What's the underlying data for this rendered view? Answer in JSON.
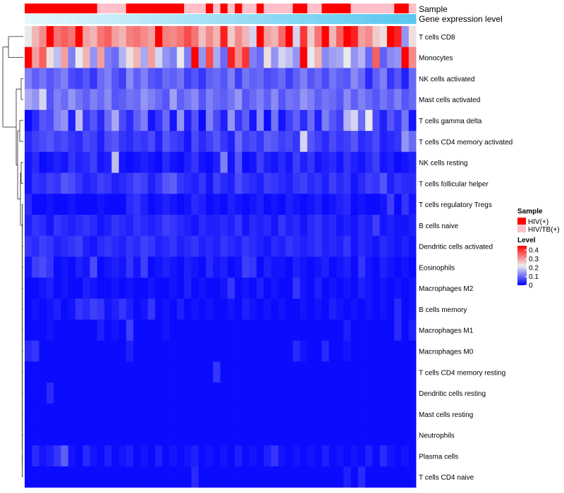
{
  "chart_data": {
    "type": "heatmap",
    "title": "",
    "annotations": {
      "sample_label": "Sample",
      "gene_label": "Gene expression level"
    },
    "legend": {
      "sample_title": "Sample",
      "sample_entries": [
        {
          "name": "HIV(+)",
          "color": "#ff0000"
        },
        {
          "name": "HIV/TB(+)",
          "color": "#ffc0cb"
        }
      ],
      "level_title": "Level",
      "level_ticks": [
        "0.4",
        "0.3",
        "0.2",
        "0.1",
        "0"
      ],
      "placement": "right"
    },
    "color_scale": {
      "min": 0,
      "max": 0.45,
      "low": "#0000ff",
      "mid": "#eeeeee",
      "high": "#ff0000"
    },
    "column_sample_groups": [
      0,
      0,
      0,
      0,
      0,
      0,
      0,
      0,
      0,
      0,
      1,
      1,
      1,
      1,
      0,
      0,
      0,
      0,
      0,
      0,
      0,
      0,
      1,
      1,
      1,
      0,
      1,
      0,
      1,
      0,
      1,
      1,
      0,
      1,
      1,
      1,
      1,
      0,
      0,
      1,
      1,
      0,
      0,
      0,
      0,
      1,
      1,
      1,
      1,
      1,
      1,
      0,
      0,
      1
    ],
    "rows": [
      "T cells CD8",
      "Monocytes",
      "NK cells activated",
      "Mast cells activated",
      "T cells gamma delta",
      "T cells CD4 memory activated",
      "NK cells resting",
      "T cells follicular helper",
      "T cells regulatory  Tregs",
      "B cells naive",
      "Dendritic cells activated",
      "Eosinophils",
      "Macrophages M2",
      "B cells memory",
      "Macrophages M1",
      "Macrophages M0",
      "T cells CD4 memory resting",
      "Dendritic cells resting",
      "Mast cells resting",
      "Neutrophils",
      "Plasma cells",
      "T cells CD4 naive"
    ],
    "n_columns": 54,
    "values": [
      [
        0.22,
        0.28,
        0.32,
        0.45,
        0.34,
        0.36,
        0.34,
        0.45,
        0.3,
        0.28,
        0.34,
        0.36,
        0.3,
        0.28,
        0.33,
        0.34,
        0.32,
        0.3,
        0.45,
        0.33,
        0.32,
        0.34,
        0.38,
        0.34,
        0.27,
        0.32,
        0.28,
        0.42,
        0.26,
        0.32,
        0.28,
        0.2,
        0.45,
        0.3,
        0.28,
        0.35,
        0.45,
        0.2,
        0.4,
        0.26,
        0.34,
        0.45,
        0.28,
        0.36,
        0.45,
        0.42,
        0.3,
        0.32,
        0.26,
        0.24,
        0.45,
        0.42,
        0.14,
        0.24
      ],
      [
        0.45,
        0.3,
        0.36,
        0.24,
        0.18,
        0.3,
        0.12,
        0.22,
        0.28,
        0.14,
        0.3,
        0.12,
        0.1,
        0.17,
        0.24,
        0.28,
        0.16,
        0.3,
        0.2,
        0.14,
        0.12,
        0.22,
        0.12,
        0.45,
        0.14,
        0.38,
        0.16,
        0.1,
        0.42,
        0.32,
        0.4,
        0.12,
        0.1,
        0.24,
        0.14,
        0.2,
        0.18,
        0.14,
        0.45,
        0.22,
        0.28,
        0.13,
        0.15,
        0.16,
        0.22,
        0.14,
        0.17,
        0.1,
        0.36,
        0.09,
        0.13,
        0.14,
        0.45,
        0.32
      ],
      [
        0.12,
        0.09,
        0.11,
        0.08,
        0.1,
        0.12,
        0.07,
        0.06,
        0.08,
        0.05,
        0.1,
        0.12,
        0.08,
        0.06,
        0.13,
        0.09,
        0.12,
        0.08,
        0.07,
        0.1,
        0.09,
        0.11,
        0.06,
        0.08,
        0.05,
        0.09,
        0.1,
        0.08,
        0.12,
        0.06,
        0.11,
        0.09,
        0.1,
        0.07,
        0.08,
        0.1,
        0.06,
        0.09,
        0.12,
        0.08,
        0.1,
        0.07,
        0.11,
        0.09,
        0.08,
        0.13,
        0.1,
        0.04,
        0.09,
        0.12,
        0.05,
        0.08,
        0.03,
        0.1
      ],
      [
        0.16,
        0.14,
        0.2,
        0.08,
        0.12,
        0.1,
        0.14,
        0.11,
        0.09,
        0.12,
        0.1,
        0.13,
        0.08,
        0.09,
        0.11,
        0.1,
        0.14,
        0.12,
        0.1,
        0.08,
        0.15,
        0.09,
        0.11,
        0.13,
        0.08,
        0.12,
        0.1,
        0.09,
        0.11,
        0.14,
        0.08,
        0.1,
        0.12,
        0.09,
        0.13,
        0.08,
        0.11,
        0.1,
        0.14,
        0.12,
        0.09,
        0.11,
        0.1,
        0.08,
        0.13,
        0.09,
        0.12,
        0.1,
        0.08,
        0.11,
        0.09,
        0.12,
        0.08,
        0.1
      ],
      [
        0.01,
        0.04,
        0.08,
        0.07,
        0.12,
        0.14,
        0.03,
        0.18,
        0.05,
        0.08,
        0.04,
        0.1,
        0.16,
        0.07,
        0.04,
        0.09,
        0.12,
        0.02,
        0.05,
        0.1,
        0.02,
        0.14,
        0.03,
        0.08,
        0.01,
        0.12,
        0.07,
        0.03,
        0.14,
        0.05,
        0.09,
        0.02,
        0.13,
        0.01,
        0.11,
        0.02,
        0.06,
        0.09,
        0.04,
        0.1,
        0.03,
        0.12,
        0.08,
        0.06,
        0.17,
        0.2,
        0.1,
        0.22,
        0.07,
        0.03,
        0.08,
        0.05,
        0.11,
        0.02
      ],
      [
        0.04,
        0.06,
        0.07,
        0.08,
        0.06,
        0.07,
        0.05,
        0.04,
        0.07,
        0.06,
        0.03,
        0.07,
        0.08,
        0.05,
        0.04,
        0.06,
        0.05,
        0.07,
        0.03,
        0.08,
        0.06,
        0.05,
        0.02,
        0.07,
        0.04,
        0.06,
        0.08,
        0.05,
        0.03,
        0.1,
        0.06,
        0.07,
        0.05,
        0.09,
        0.08,
        0.06,
        0.07,
        0.05,
        0.2,
        0.08,
        0.06,
        0.04,
        0.07,
        0.05,
        0.06,
        0.08,
        0.04,
        0.05,
        0.07,
        0.03,
        0.04,
        0.05,
        0.14,
        0.1
      ],
      [
        0.02,
        0.04,
        0.01,
        0.02,
        0.03,
        0.02,
        0.05,
        0.03,
        0.04,
        0.06,
        0.02,
        0.03,
        0.18,
        0.02,
        0.01,
        0.02,
        0.03,
        0.02,
        0.01,
        0.04,
        0.02,
        0.01,
        0.03,
        0.05,
        0.02,
        0.01,
        0.03,
        0.12,
        0.02,
        0.08,
        0.01,
        0.02,
        0.06,
        0.03,
        0.02,
        0.04,
        0.02,
        0.06,
        0.03,
        0.05,
        0.02,
        0.03,
        0.04,
        0.02,
        0.05,
        0.03,
        0.02,
        0.04,
        0.06,
        0.02,
        0.03,
        0.01,
        0.02,
        0.03
      ],
      [
        0.02,
        0.05,
        0.04,
        0.06,
        0.05,
        0.08,
        0.07,
        0.05,
        0.03,
        0.04,
        0.06,
        0.05,
        0.03,
        0.04,
        0.05,
        0.07,
        0.06,
        0.03,
        0.05,
        0.08,
        0.09,
        0.05,
        0.04,
        0.03,
        0.05,
        0.02,
        0.06,
        0.04,
        0.03,
        0.07,
        0.05,
        0.04,
        0.03,
        0.06,
        0.05,
        0.04,
        0.03,
        0.05,
        0.06,
        0.04,
        0.05,
        0.03,
        0.06,
        0.04,
        0.05,
        0.02,
        0.04,
        0.06,
        0.05,
        0.08,
        0.03,
        0.05,
        0.04,
        0.04
      ],
      [
        0.04,
        0.01,
        0.01,
        0.02,
        0.01,
        0.01,
        0.02,
        0.01,
        0.01,
        0.01,
        0.02,
        0.01,
        0.01,
        0.01,
        0.04,
        0.05,
        0.03,
        0.01,
        0.02,
        0.03,
        0.02,
        0.01,
        0.02,
        0.04,
        0.03,
        0.01,
        0.02,
        0.01,
        0.03,
        0.02,
        0.01,
        0.02,
        0.03,
        0.01,
        0.02,
        0.01,
        0.03,
        0.02,
        0.01,
        0.02,
        0.03,
        0.01,
        0.02,
        0.03,
        0.04,
        0.01,
        0.02,
        0.01,
        0.01,
        0.02,
        0.06,
        0.01,
        0.05,
        0.02
      ],
      [
        0.03,
        0.05,
        0.04,
        0.02,
        0.05,
        0.04,
        0.03,
        0.04,
        0.05,
        0.04,
        0.02,
        0.03,
        0.05,
        0.04,
        0.03,
        0.05,
        0.04,
        0.03,
        0.04,
        0.06,
        0.05,
        0.04,
        0.03,
        0.02,
        0.04,
        0.03,
        0.03,
        0.04,
        0.03,
        0.05,
        0.02,
        0.04,
        0.03,
        0.04,
        0.02,
        0.05,
        0.03,
        0.04,
        0.02,
        0.04,
        0.05,
        0.03,
        0.04,
        0.02,
        0.03,
        0.02,
        0.04,
        0.03,
        0.06,
        0.02,
        0.03,
        0.02,
        0.02,
        0.03
      ],
      [
        0.05,
        0.04,
        0.06,
        0.05,
        0.03,
        0.04,
        0.05,
        0.06,
        0.03,
        0.02,
        0.04,
        0.05,
        0.04,
        0.03,
        0.05,
        0.04,
        0.06,
        0.05,
        0.03,
        0.04,
        0.05,
        0.03,
        0.04,
        0.05,
        0.03,
        0.04,
        0.03,
        0.05,
        0.04,
        0.03,
        0.05,
        0.04,
        0.03,
        0.02,
        0.04,
        0.03,
        0.05,
        0.04,
        0.03,
        0.04,
        0.05,
        0.03,
        0.04,
        0.03,
        0.05,
        0.02,
        0.04,
        0.03,
        0.02,
        0.04,
        0.03,
        0.02,
        0.03,
        0.02
      ],
      [
        0.02,
        0.06,
        0.07,
        0.05,
        0.01,
        0.02,
        0.01,
        0.03,
        0.02,
        0.07,
        0.01,
        0.02,
        0.03,
        0.02,
        0.05,
        0.02,
        0.06,
        0.01,
        0.02,
        0.03,
        0.02,
        0.01,
        0.03,
        0.02,
        0.01,
        0.04,
        0.02,
        0.03,
        0.01,
        0.02,
        0.06,
        0.05,
        0.01,
        0.03,
        0.02,
        0.02,
        0.01,
        0.03,
        0.02,
        0.01,
        0.02,
        0.03,
        0.01,
        0.02,
        0.03,
        0.01,
        0.05,
        0.02,
        0.01,
        0.03,
        0.02,
        0.01,
        0.02,
        0.01
      ],
      [
        0.01,
        0.01,
        0.02,
        0.03,
        0.01,
        0.02,
        0.01,
        0.01,
        0.03,
        0.02,
        0.01,
        0.01,
        0.02,
        0.01,
        0.02,
        0.01,
        0.01,
        0.02,
        0.01,
        0.01,
        0.02,
        0.01,
        0.03,
        0.01,
        0.02,
        0.01,
        0.01,
        0.02,
        0.05,
        0.01,
        0.02,
        0.01,
        0.03,
        0.01,
        0.02,
        0.01,
        0.01,
        0.05,
        0.02,
        0.01,
        0.03,
        0.01,
        0.02,
        0.01,
        0.02,
        0.01,
        0.03,
        0.02,
        0.01,
        0.02,
        0.01,
        0.02,
        0.01,
        0.02
      ],
      [
        0.01,
        0.02,
        0.01,
        0.02,
        0.03,
        0.01,
        0.02,
        0.05,
        0.04,
        0.06,
        0.05,
        0.02,
        0.03,
        0.05,
        0.03,
        0.01,
        0.02,
        0.05,
        0.01,
        0.02,
        0.01,
        0.03,
        0.01,
        0.02,
        0.01,
        0.02,
        0.01,
        0.01,
        0.02,
        0.01,
        0.03,
        0.02,
        0.01,
        0.02,
        0.01,
        0.02,
        0.01,
        0.01,
        0.02,
        0.01,
        0.02,
        0.01,
        0.03,
        0.02,
        0.01,
        0.02,
        0.01,
        0.02,
        0.01,
        0.02,
        0.01,
        0.04,
        0.01,
        0.02
      ],
      [
        0.01,
        0.01,
        0.01,
        0.02,
        0.01,
        0.01,
        0.01,
        0.01,
        0.01,
        0.01,
        0.03,
        0.01,
        0.02,
        0.01,
        0.06,
        0.01,
        0.01,
        0.01,
        0.01,
        0.02,
        0.01,
        0.01,
        0.01,
        0.01,
        0.01,
        0.01,
        0.01,
        0.01,
        0.01,
        0.01,
        0.01,
        0.01,
        0.01,
        0.01,
        0.01,
        0.01,
        0.01,
        0.01,
        0.01,
        0.01,
        0.01,
        0.01,
        0.01,
        0.01,
        0.03,
        0.01,
        0.01,
        0.01,
        0.01,
        0.01,
        0.01,
        0.04,
        0.01,
        0.03
      ],
      [
        0.04,
        0.05,
        0.01,
        0.01,
        0.01,
        0.01,
        0.01,
        0.01,
        0.01,
        0.01,
        0.01,
        0.01,
        0.01,
        0.01,
        0.03,
        0.01,
        0.01,
        0.01,
        0.01,
        0.01,
        0.01,
        0.01,
        0.01,
        0.01,
        0.01,
        0.01,
        0.01,
        0.01,
        0.01,
        0.01,
        0.01,
        0.01,
        0.01,
        0.01,
        0.01,
        0.01,
        0.01,
        0.04,
        0.02,
        0.01,
        0.01,
        0.04,
        0.01,
        0.01,
        0.02,
        0.01,
        0.01,
        0.01,
        0.01,
        0.01,
        0.01,
        0.01,
        0.01,
        0.01
      ],
      [
        0.01,
        0.01,
        0.01,
        0.01,
        0.01,
        0.01,
        0.01,
        0.01,
        0.01,
        0.01,
        0.01,
        0.01,
        0.01,
        0.01,
        0.01,
        0.01,
        0.01,
        0.01,
        0.01,
        0.01,
        0.01,
        0.01,
        0.01,
        0.01,
        0.01,
        0.01,
        0.05,
        0.01,
        0.01,
        0.01,
        0.01,
        0.01,
        0.01,
        0.01,
        0.01,
        0.01,
        0.01,
        0.01,
        0.01,
        0.01,
        0.01,
        0.01,
        0.01,
        0.01,
        0.01,
        0.01,
        0.01,
        0.01,
        0.01,
        0.01,
        0.01,
        0.01,
        0.01,
        0.01
      ],
      [
        0.01,
        0.01,
        0.01,
        0.04,
        0.01,
        0.01,
        0.01,
        0.01,
        0.01,
        0.01,
        0.01,
        0.01,
        0.01,
        0.01,
        0.01,
        0.01,
        0.01,
        0.01,
        0.01,
        0.01,
        0.01,
        0.01,
        0.01,
        0.01,
        0.01,
        0.01,
        0.01,
        0.01,
        0.01,
        0.01,
        0.01,
        0.01,
        0.01,
        0.01,
        0.01,
        0.01,
        0.01,
        0.01,
        0.01,
        0.01,
        0.01,
        0.01,
        0.01,
        0.01,
        0.01,
        0.01,
        0.01,
        0.01,
        0.01,
        0.01,
        0.01,
        0.01,
        0.01,
        0.01
      ],
      [
        0.01,
        0.01,
        0.01,
        0.01,
        0.01,
        0.01,
        0.01,
        0.01,
        0.01,
        0.01,
        0.01,
        0.01,
        0.01,
        0.01,
        0.01,
        0.01,
        0.01,
        0.01,
        0.01,
        0.01,
        0.01,
        0.01,
        0.01,
        0.01,
        0.01,
        0.01,
        0.01,
        0.01,
        0.01,
        0.01,
        0.01,
        0.01,
        0.01,
        0.01,
        0.01,
        0.01,
        0.01,
        0.01,
        0.01,
        0.01,
        0.01,
        0.01,
        0.01,
        0.01,
        0.01,
        0.01,
        0.01,
        0.01,
        0.01,
        0.01,
        0.01,
        0.01,
        0.01,
        0.01
      ],
      [
        0.01,
        0.01,
        0.01,
        0.01,
        0.01,
        0.01,
        0.01,
        0.01,
        0.01,
        0.01,
        0.01,
        0.01,
        0.01,
        0.01,
        0.01,
        0.01,
        0.01,
        0.01,
        0.01,
        0.01,
        0.01,
        0.01,
        0.01,
        0.01,
        0.01,
        0.01,
        0.01,
        0.01,
        0.01,
        0.01,
        0.01,
        0.01,
        0.01,
        0.01,
        0.01,
        0.01,
        0.01,
        0.01,
        0.01,
        0.01,
        0.01,
        0.01,
        0.01,
        0.01,
        0.01,
        0.01,
        0.01,
        0.01,
        0.01,
        0.01,
        0.01,
        0.01,
        0.01,
        0.01
      ],
      [
        0.01,
        0.04,
        0.02,
        0.03,
        0.05,
        0.09,
        0.02,
        0.01,
        0.04,
        0.02,
        0.01,
        0.03,
        0.01,
        0.02,
        0.03,
        0.01,
        0.02,
        0.01,
        0.03,
        0.01,
        0.02,
        0.01,
        0.02,
        0.03,
        0.01,
        0.02,
        0.01,
        0.02,
        0.01,
        0.03,
        0.01,
        0.02,
        0.01,
        0.03,
        0.05,
        0.02,
        0.01,
        0.02,
        0.01,
        0.02,
        0.01,
        0.03,
        0.01,
        0.02,
        0.01,
        0.02,
        0.01,
        0.03,
        0.01,
        0.04,
        0.02,
        0.01,
        0.02,
        0.01
      ],
      [
        0.01,
        0.01,
        0.01,
        0.01,
        0.01,
        0.01,
        0.01,
        0.01,
        0.01,
        0.01,
        0.01,
        0.01,
        0.01,
        0.01,
        0.01,
        0.01,
        0.01,
        0.01,
        0.01,
        0.01,
        0.01,
        0.01,
        0.01,
        0.04,
        0.01,
        0.01,
        0.01,
        0.01,
        0.01,
        0.01,
        0.01,
        0.01,
        0.01,
        0.01,
        0.01,
        0.01,
        0.01,
        0.01,
        0.01,
        0.01,
        0.01,
        0.01,
        0.01,
        0.01,
        0.03,
        0.01,
        0.04,
        0.01,
        0.01,
        0.01,
        0.01,
        0.01,
        0.01,
        0.01
      ]
    ]
  }
}
